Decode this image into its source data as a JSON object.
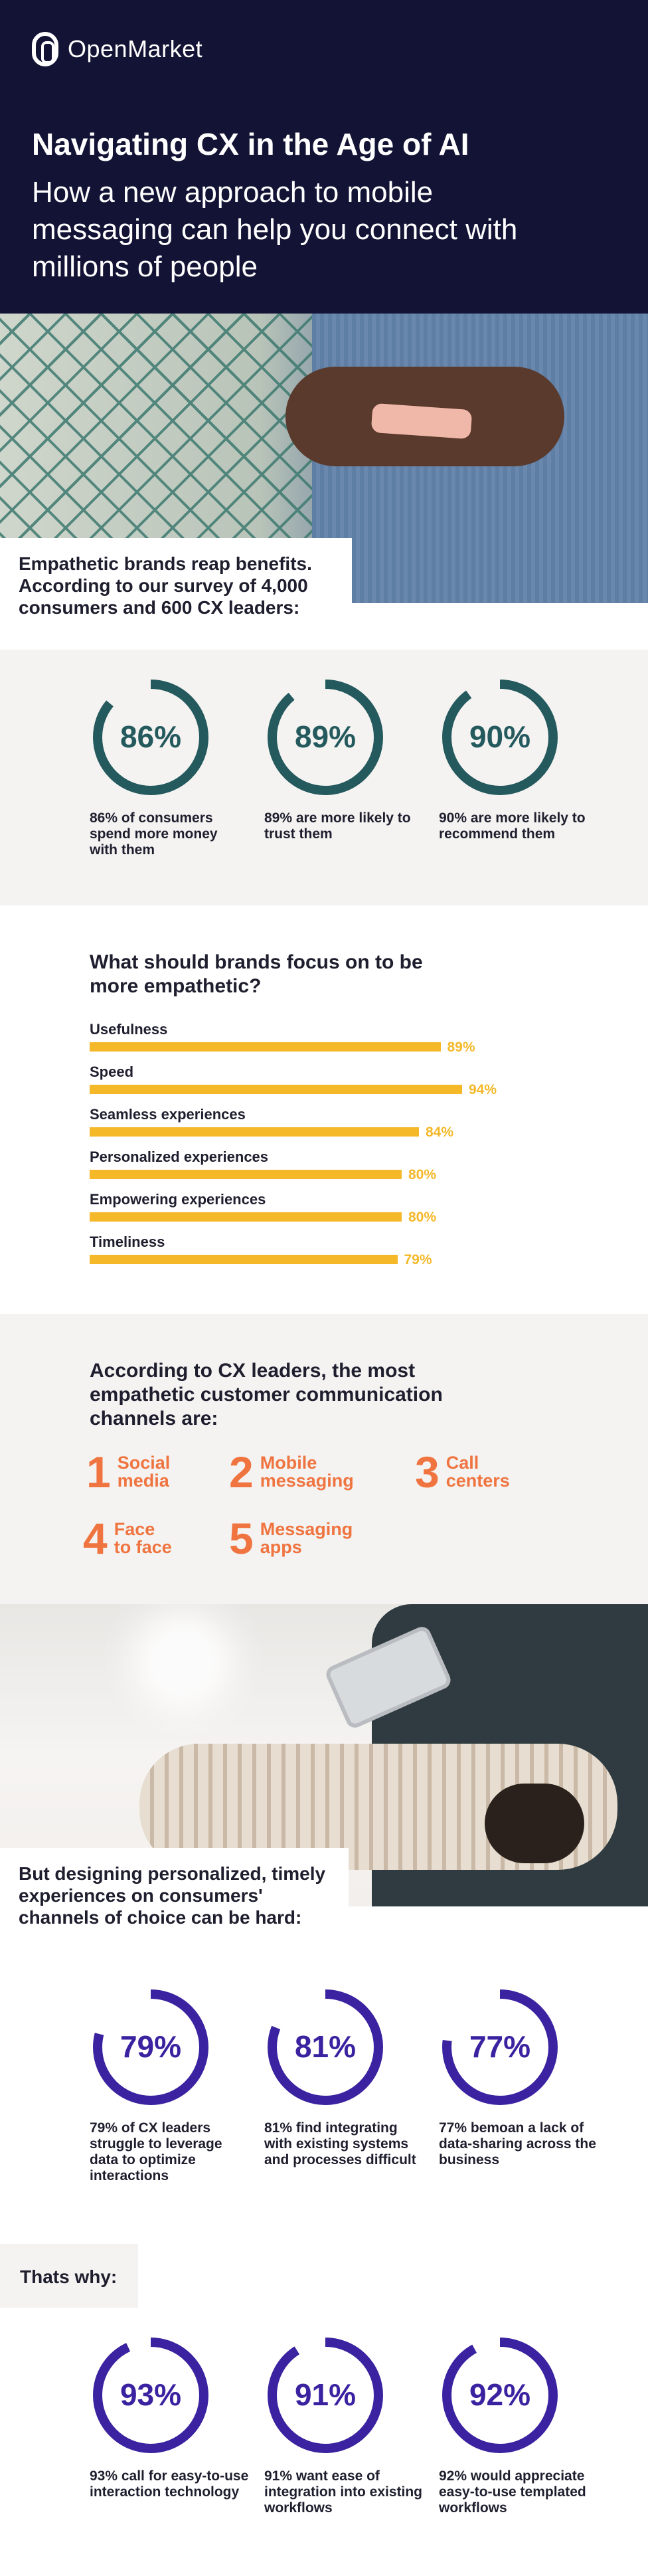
{
  "brand": {
    "name": "OpenMarket"
  },
  "header": {
    "title": "Navigating CX in the Age of AI",
    "subtitle": "How a new approach to mobile messaging can help you connect with millions of people"
  },
  "colors": {
    "navy": "#131335",
    "teal": "#24595d",
    "yellow": "#f4b829",
    "orange": "#ef7440",
    "purple": "#3b22a0"
  },
  "section1": {
    "caption": "Empathetic brands reap benefits. According to our survey of 4,000 consumers and 600 CX leaders:",
    "stats": [
      {
        "value": "86%",
        "fraction": 0.86,
        "caption": "86% of consumers spend more money with them"
      },
      {
        "value": "89%",
        "fraction": 0.89,
        "caption": "89% are more likely to trust them"
      },
      {
        "value": "90%",
        "fraction": 0.9,
        "caption": "90% are more likely to recommend them"
      }
    ]
  },
  "focus": {
    "title": "What should brands focus on to be more empathetic?",
    "items": [
      {
        "label": "Usefulness",
        "value": 89,
        "pct": "89%"
      },
      {
        "label": "Speed",
        "value": 94,
        "pct": "94%"
      },
      {
        "label": "Seamless experiences",
        "value": 84,
        "pct": "84%"
      },
      {
        "label": "Personalized experiences",
        "value": 80,
        "pct": "80%"
      },
      {
        "label": "Empowering experiences",
        "value": 80,
        "pct": "80%"
      },
      {
        "label": "Timeliness",
        "value": 79,
        "pct": "79%"
      }
    ]
  },
  "channels": {
    "title": "According to CX leaders, the most empathetic customer communication channels are:",
    "items": [
      {
        "num": "1",
        "line1": "Social",
        "line2": "media"
      },
      {
        "num": "2",
        "line1": "Mobile",
        "line2": "messaging"
      },
      {
        "num": "3",
        "line1": "Call",
        "line2": "centers"
      },
      {
        "num": "4",
        "line1": "Face",
        "line2": "to face"
      },
      {
        "num": "5",
        "line1": "Messaging",
        "line2": "apps"
      }
    ]
  },
  "section4": {
    "caption": "But designing personalized, timely experiences on consumers' channels of choice can be hard:",
    "stats": [
      {
        "value": "79%",
        "fraction": 0.79,
        "caption": "79% of CX leaders struggle to leverage data to optimize interactions"
      },
      {
        "value": "81%",
        "fraction": 0.81,
        "caption": "81% find integrating with existing systems and processes difficult"
      },
      {
        "value": "77%",
        "fraction": 0.77,
        "caption": "77% bemoan a lack of data-sharing across the business"
      }
    ]
  },
  "section5": {
    "caption": "Thats why:",
    "stats": [
      {
        "value": "93%",
        "fraction": 0.93,
        "caption": "93% call for easy-to-use interaction technology"
      },
      {
        "value": "91%",
        "fraction": 0.91,
        "caption": "91% want ease of integration into existing workflows"
      },
      {
        "value": "92%",
        "fraction": 0.92,
        "caption": "92% would appreciate easy-to-use templated workflows"
      }
    ]
  }
}
